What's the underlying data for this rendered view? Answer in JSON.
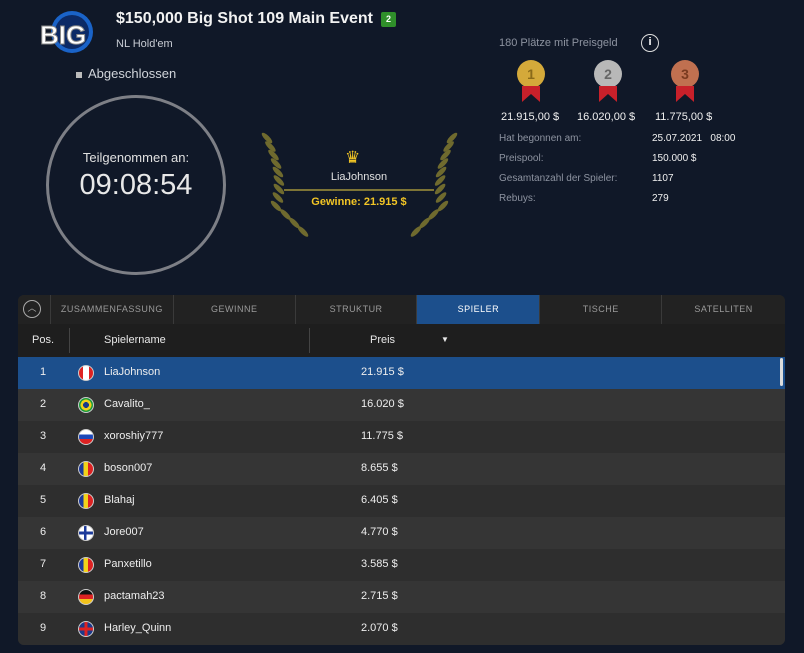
{
  "header": {
    "logo_text": "BIG",
    "title": "$150,000 Big Shot 109 Main Event",
    "badge": "2nd",
    "game": "NL Hold'em",
    "status": "Abgeschlossen"
  },
  "timer": {
    "label": "Teilgenommen an:",
    "value": "09:08:54"
  },
  "winner": {
    "name": "LiaJohnson",
    "prize": "Gewinne: 21.915 $"
  },
  "prizes": {
    "paid_places": "180 Plätze mit Preisgeld",
    "medals": [
      {
        "rank": "1",
        "amount": "21.915,00 $",
        "color": "#d4a93a"
      },
      {
        "rank": "2",
        "amount": "16.020,00 $",
        "color": "#b8b8b8"
      },
      {
        "rank": "3",
        "amount": "11.775,00 $",
        "color": "#c07050"
      }
    ]
  },
  "info": [
    {
      "key": "Hat begonnen am:",
      "value": "25.07.2021   08:00"
    },
    {
      "key": "Preispool:",
      "value": "150.000 $"
    },
    {
      "key": "Gesamtanzahl der Spieler:",
      "value": "1107"
    },
    {
      "key": "Rebuys:",
      "value": "279"
    }
  ],
  "tabs": [
    "ZUSAMMENFASSUNG",
    "GEWINNE",
    "STRUKTUR",
    "SPIELER",
    "TISCHE",
    "SATELLITEN"
  ],
  "active_tab": "SPIELER",
  "table": {
    "headers": {
      "pos": "Pos.",
      "name": "Spielername",
      "prize": "Preis"
    },
    "rows": [
      {
        "pos": "1",
        "name": "LiaJohnson",
        "prize": "21.915 $",
        "country": "Canada"
      },
      {
        "pos": "2",
        "name": "Cavalito_",
        "prize": "16.020 $",
        "country": "Brazil"
      },
      {
        "pos": "3",
        "name": "xoroshiy777",
        "prize": "11.775 $",
        "country": "Russia"
      },
      {
        "pos": "4",
        "name": "boson007",
        "prize": "8.655 $",
        "country": "Romania"
      },
      {
        "pos": "5",
        "name": "Blahaj",
        "prize": "6.405 $",
        "country": "Romania"
      },
      {
        "pos": "6",
        "name": "Jore007",
        "prize": "4.770 $",
        "country": "Finland"
      },
      {
        "pos": "7",
        "name": "Panxetillo",
        "prize": "3.585 $",
        "country": "Andorra"
      },
      {
        "pos": "8",
        "name": "pactamah23",
        "prize": "2.715 $",
        "country": "Germany"
      },
      {
        "pos": "9",
        "name": "Harley_Quinn",
        "prize": "2.070 $",
        "country": "United Kingdom"
      }
    ]
  }
}
